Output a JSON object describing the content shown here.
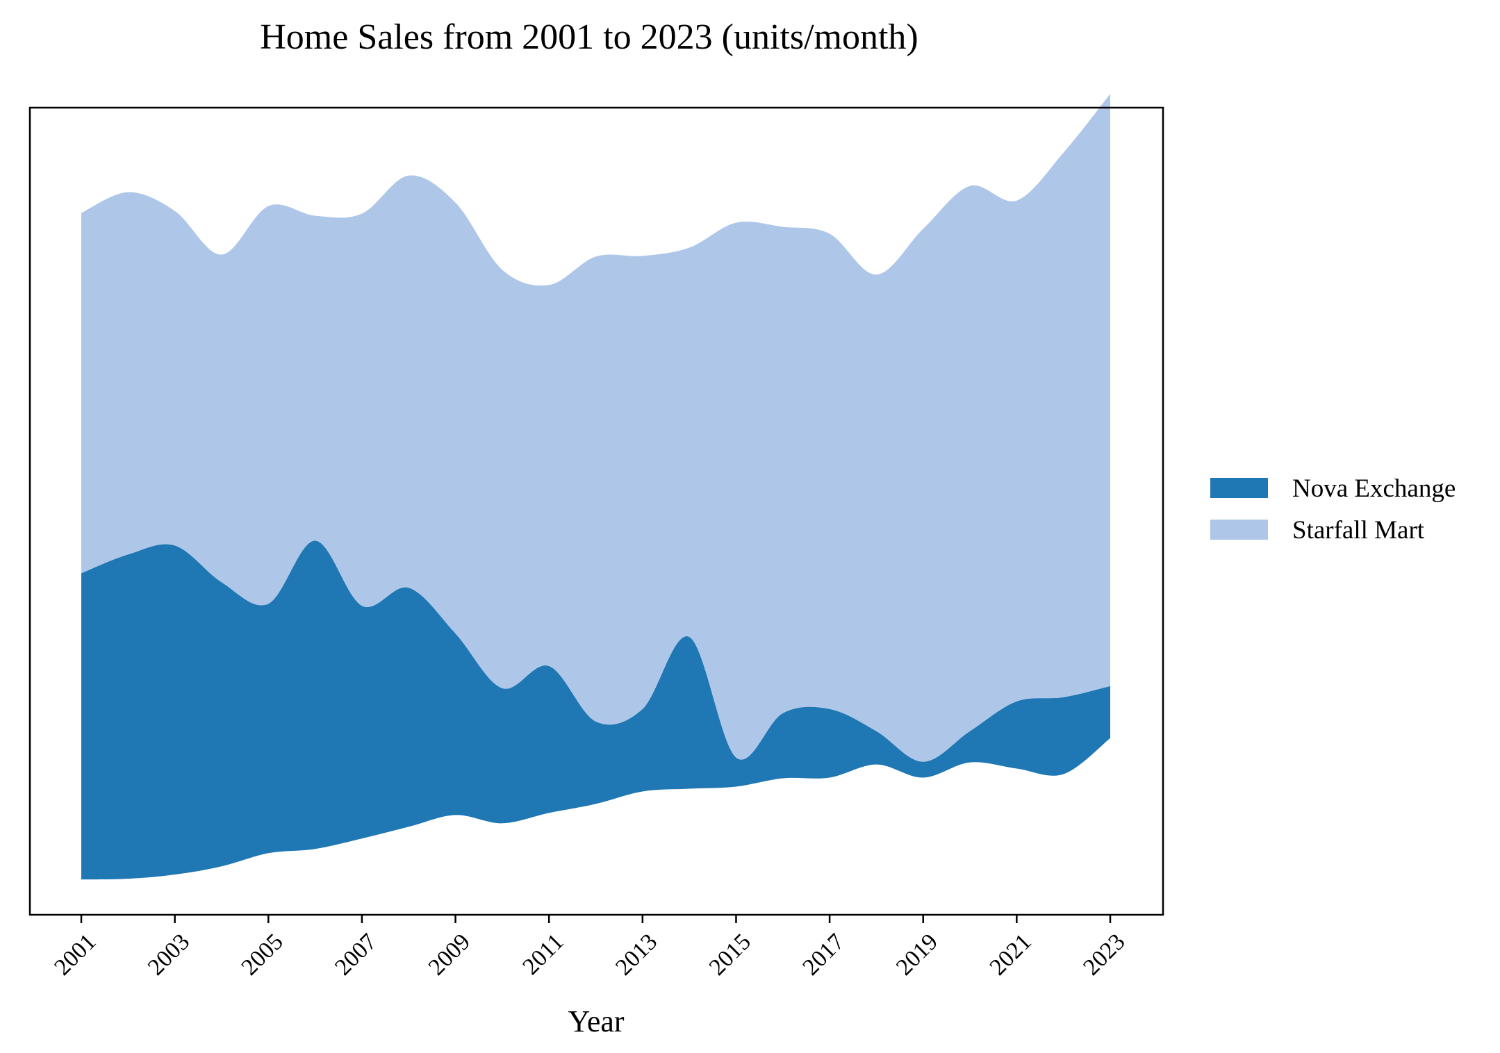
{
  "chart_data": {
    "type": "area",
    "subtype": "streamgraph",
    "title": "Home Sales from 2001 to 2023 (units/month)",
    "xlabel": "Year",
    "ylabel": "",
    "x": [
      2001,
      2002,
      2003,
      2004,
      2005,
      2006,
      2007,
      2008,
      2009,
      2010,
      2011,
      2012,
      2013,
      2014,
      2015,
      2016,
      2017,
      2018,
      2019,
      2020,
      2021,
      2022,
      2023
    ],
    "x_ticks": [
      "2001",
      "2003",
      "2005",
      "2007",
      "2009",
      "2011",
      "2013",
      "2015",
      "2017",
      "2019",
      "2021",
      "2023"
    ],
    "series": [
      {
        "name": "Nova Exchange",
        "color": "#1f77b4",
        "values": [
          442,
          468,
          475,
          410,
          360,
          445,
          336,
          345,
          262,
          195,
          212,
          119,
          119,
          219,
          42,
          94,
          99,
          48,
          23,
          45,
          97,
          111,
          75
        ]
      },
      {
        "name": "Starfall Mart",
        "color": "#aec7e8",
        "values": [
          520,
          523,
          483,
          473,
          574,
          469,
          566,
          595,
          622,
          604,
          550,
          671,
          654,
          562,
          772,
          702,
          686,
          659,
          769,
          787,
          723,
          786,
          855
        ]
      }
    ],
    "y_baseline": [
      -39,
      -38,
      -32,
      -20,
      -1,
      5,
      20,
      37,
      54,
      42,
      57,
      70,
      88,
      92,
      95,
      107,
      108,
      127,
      108,
      130,
      121,
      113,
      165
    ],
    "ylim": [
      -90,
      1075
    ],
    "yticks_shown": false,
    "grid": false,
    "legend": "right"
  }
}
